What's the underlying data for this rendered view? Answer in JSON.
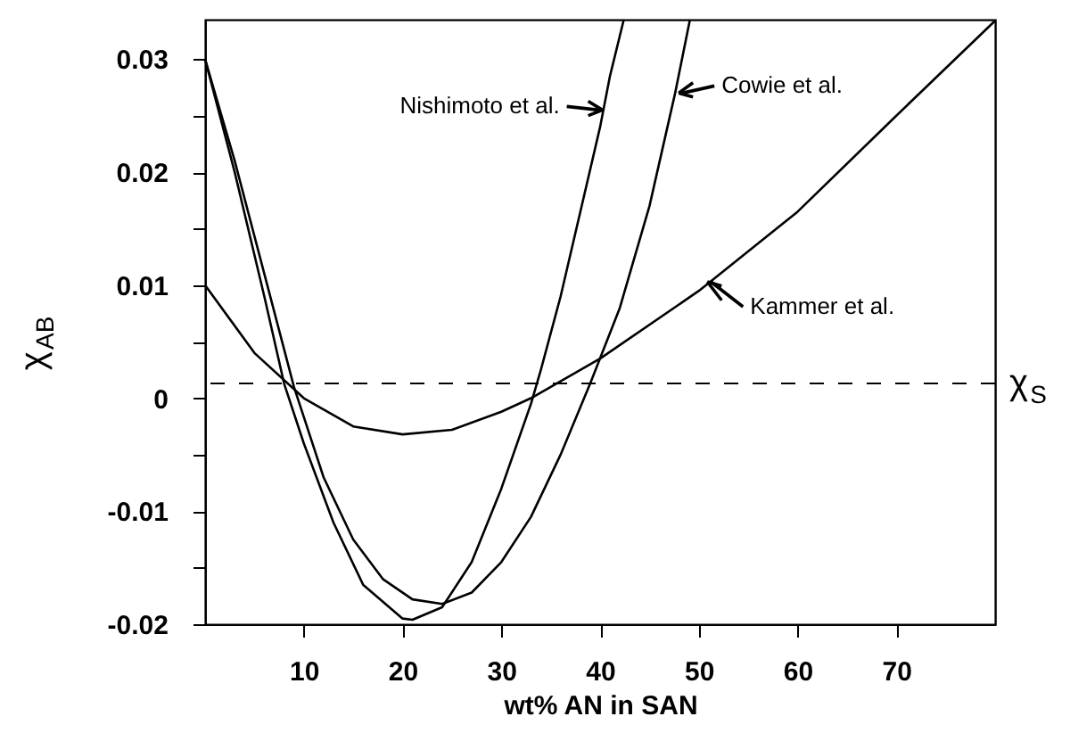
{
  "chart_data": {
    "type": "line",
    "xlabel": "wt% AN in SAN",
    "ylabel": "χ$_{AB}$",
    "xlim": [
      0,
      80
    ],
    "ylim": [
      -0.02,
      0.0335
    ],
    "xticks": [
      10,
      20,
      30,
      40,
      50,
      60,
      70
    ],
    "yticks": [
      -0.02,
      {
        "value": -0.015,
        "label": null
      },
      -0.01,
      {
        "value": -0.005,
        "label": null
      },
      0,
      {
        "value": 0.005,
        "label": null
      },
      0.01,
      {
        "value": 0.015,
        "label": null
      },
      0.02,
      {
        "value": 0.025,
        "label": null
      },
      0.03
    ],
    "grid": false,
    "marker": "none",
    "line_style": "solid",
    "series": [
      {
        "color": "#000000",
        "x": [
          0,
          3,
          6,
          8,
          10,
          13,
          16,
          20,
          21,
          24,
          27,
          30,
          33,
          34,
          36,
          38,
          40,
          41,
          42.4
        ],
        "values": [
          0.03,
          0.02,
          0.009,
          0.0013,
          -0.004,
          -0.011,
          -0.0165,
          -0.0195,
          -0.0196,
          -0.0185,
          -0.0145,
          -0.008,
          -0.0005,
          0.0025,
          0.009,
          0.0165,
          0.024,
          0.0285,
          0.0335
        ]
      },
      {
        "color": "#000000",
        "x": [
          0,
          3,
          6,
          9,
          12,
          15,
          18,
          21,
          24,
          27,
          30,
          33,
          36,
          39,
          42,
          45,
          47.6,
          49.1
        ],
        "values": [
          0.03,
          0.021,
          0.011,
          0.001,
          -0.007,
          -0.0125,
          -0.016,
          -0.0178,
          -0.0182,
          -0.0172,
          -0.0145,
          -0.0105,
          -0.005,
          0.0013,
          0.008,
          0.017,
          0.027,
          0.0335
        ]
      },
      {
        "color": "#000000",
        "x": [
          0,
          5,
          10,
          15,
          20,
          25,
          30,
          33,
          40,
          50,
          60,
          70,
          80
        ],
        "values": [
          0.01,
          0.004,
          0.0,
          -0.0025,
          -0.0032,
          -0.0028,
          -0.0012,
          0.0,
          0.0035,
          0.0095,
          0.0165,
          0.025,
          0.0334
        ]
      }
    ],
    "ref_lines": [
      {
        "axis": "y",
        "value": 0.0013,
        "label": "χ$_{S}$",
        "line_style": "dashed",
        "color": "#000000"
      }
    ],
    "annotations": [
      {
        "text": "Nishimoto et al.",
        "x": 40.6,
        "y": 0.0255
      },
      {
        "text": "Cowie et al.",
        "x": 47.6,
        "y": 0.027
      },
      {
        "text": "Kammer et al.",
        "x": 50.5,
        "y": 0.0103
      }
    ]
  }
}
